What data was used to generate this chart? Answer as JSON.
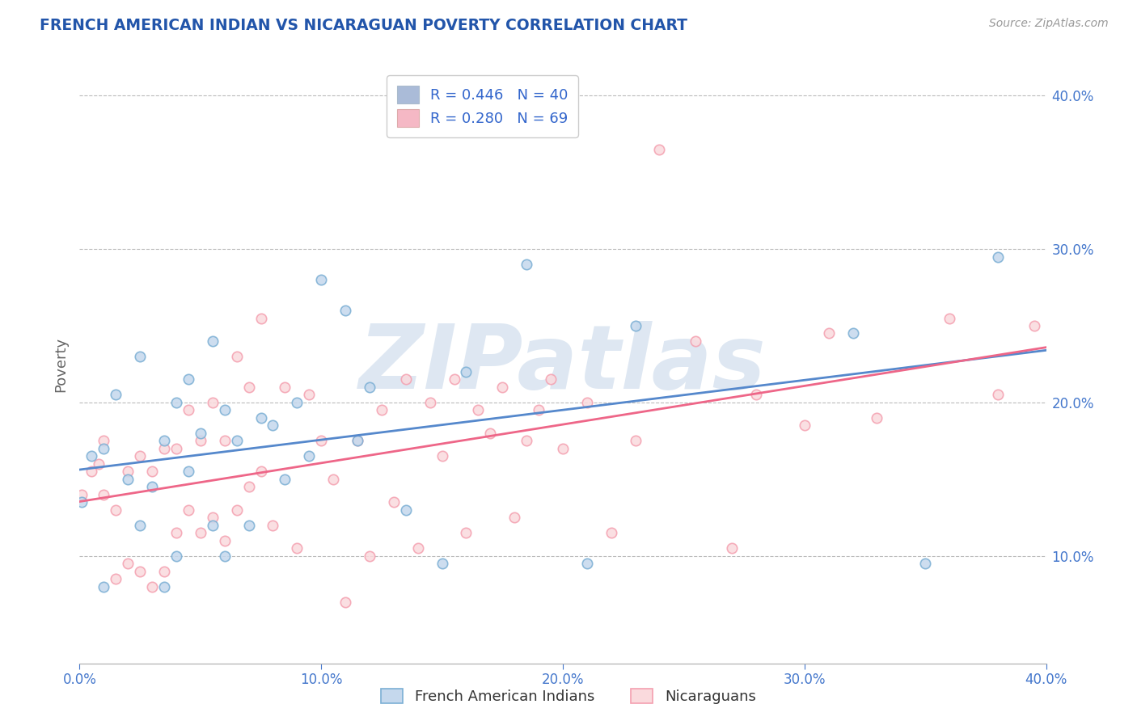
{
  "title": "FRENCH AMERICAN INDIAN VS NICARAGUAN POVERTY CORRELATION CHART",
  "source": "Source: ZipAtlas.com",
  "ylabel": "Poverty",
  "watermark": "ZIPatlas",
  "legend1_r": "R = 0.446",
  "legend1_n": "N = 40",
  "legend2_r": "R = 0.280",
  "legend2_n": "N = 69",
  "blue_color": "#7BAFD4",
  "pink_color": "#F4A0B0",
  "blue_fill_color": "#C5D8ED",
  "pink_fill_color": "#FADADD",
  "blue_line_color": "#5588CC",
  "pink_line_color": "#EE6688",
  "blue_legend_color": "#AABBD8",
  "pink_legend_color": "#F5B8C5",
  "legend_color": "#3366CC",
  "legend_n_color": "#EE4466",
  "title_color": "#2255AA",
  "source_color": "#999999",
  "watermark_color": "#C8D8EA",
  "ylabel_color": "#666666",
  "axis_tick_color": "#4477CC",
  "blue_scatter": {
    "x": [
      0.001,
      0.005,
      0.01,
      0.01,
      0.015,
      0.02,
      0.025,
      0.025,
      0.03,
      0.035,
      0.035,
      0.04,
      0.04,
      0.045,
      0.045,
      0.05,
      0.055,
      0.055,
      0.06,
      0.06,
      0.065,
      0.07,
      0.075,
      0.08,
      0.085,
      0.09,
      0.095,
      0.1,
      0.11,
      0.115,
      0.12,
      0.135,
      0.15,
      0.16,
      0.185,
      0.21,
      0.23,
      0.32,
      0.35,
      0.38
    ],
    "y": [
      0.135,
      0.165,
      0.08,
      0.17,
      0.205,
      0.15,
      0.12,
      0.23,
      0.145,
      0.08,
      0.175,
      0.1,
      0.2,
      0.155,
      0.215,
      0.18,
      0.12,
      0.24,
      0.1,
      0.195,
      0.175,
      0.12,
      0.19,
      0.185,
      0.15,
      0.2,
      0.165,
      0.28,
      0.26,
      0.175,
      0.21,
      0.13,
      0.095,
      0.22,
      0.29,
      0.095,
      0.25,
      0.245,
      0.095,
      0.295
    ]
  },
  "pink_scatter": {
    "x": [
      0.001,
      0.005,
      0.008,
      0.01,
      0.01,
      0.015,
      0.015,
      0.02,
      0.02,
      0.025,
      0.025,
      0.03,
      0.03,
      0.035,
      0.035,
      0.04,
      0.04,
      0.045,
      0.045,
      0.05,
      0.05,
      0.055,
      0.055,
      0.06,
      0.06,
      0.065,
      0.065,
      0.07,
      0.07,
      0.075,
      0.075,
      0.08,
      0.085,
      0.09,
      0.095,
      0.1,
      0.105,
      0.11,
      0.115,
      0.12,
      0.125,
      0.13,
      0.135,
      0.14,
      0.145,
      0.15,
      0.155,
      0.16,
      0.165,
      0.17,
      0.175,
      0.18,
      0.185,
      0.19,
      0.195,
      0.2,
      0.21,
      0.22,
      0.23,
      0.24,
      0.255,
      0.27,
      0.28,
      0.3,
      0.31,
      0.33,
      0.36,
      0.38,
      0.395
    ],
    "y": [
      0.14,
      0.155,
      0.16,
      0.14,
      0.175,
      0.085,
      0.13,
      0.095,
      0.155,
      0.09,
      0.165,
      0.08,
      0.155,
      0.09,
      0.17,
      0.115,
      0.17,
      0.13,
      0.195,
      0.115,
      0.175,
      0.125,
      0.2,
      0.11,
      0.175,
      0.13,
      0.23,
      0.145,
      0.21,
      0.155,
      0.255,
      0.12,
      0.21,
      0.105,
      0.205,
      0.175,
      0.15,
      0.07,
      0.175,
      0.1,
      0.195,
      0.135,
      0.215,
      0.105,
      0.2,
      0.165,
      0.215,
      0.115,
      0.195,
      0.18,
      0.21,
      0.125,
      0.175,
      0.195,
      0.215,
      0.17,
      0.2,
      0.115,
      0.175,
      0.365,
      0.24,
      0.105,
      0.205,
      0.185,
      0.245,
      0.19,
      0.255,
      0.205,
      0.25
    ]
  },
  "xlim": [
    0.0,
    0.4
  ],
  "ylim": [
    0.03,
    0.42
  ],
  "xticks": [
    0.0,
    0.1,
    0.2,
    0.3,
    0.4
  ],
  "yticks_right": [
    0.1,
    0.2,
    0.3,
    0.4
  ],
  "ytick_labels_right": [
    "10.0%",
    "20.0%",
    "30.0%",
    "40.0%"
  ],
  "xtick_labels": [
    "0.0%",
    "10.0%",
    "20.0%",
    "30.0%",
    "40.0%"
  ],
  "legend_label1": "French American Indians",
  "legend_label2": "Nicaraguans",
  "figsize": [
    14.06,
    8.92
  ],
  "dpi": 100
}
